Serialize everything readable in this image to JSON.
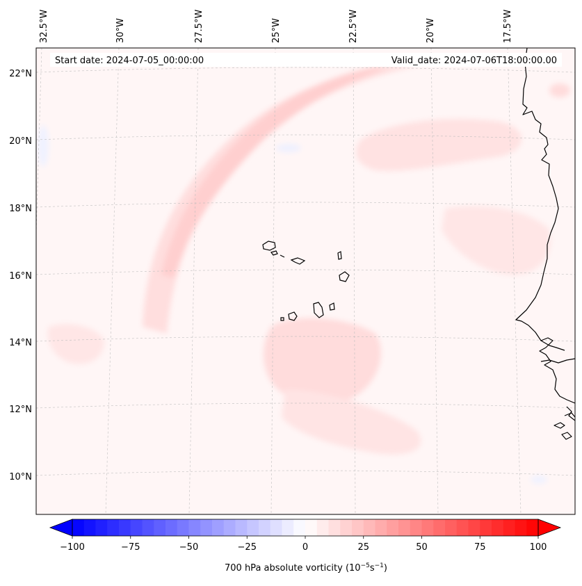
{
  "header": {
    "start_date": "Start date: 2024-07-05_00:00:00",
    "valid_date": "Valid_date: 2024-07-06T18:00:00.00"
  },
  "map": {
    "variable": "700 hPa absolute vorticity",
    "lon_labels": [
      "32.5°W",
      "30°W",
      "27.5°W",
      "25°W",
      "22.5°W",
      "20°W",
      "17.5°W"
    ],
    "lat_labels": [
      "22°N",
      "20°N",
      "18°N",
      "16°N",
      "14°N",
      "12°N",
      "10°N"
    ],
    "gridlines": true,
    "coastline_color": "#000000",
    "features": [
      "cape-verde-islands",
      "west-africa-coast"
    ]
  },
  "colorbar": {
    "label_prefix": "700 hPa absolute vorticity (10",
    "label_exp1": "−5",
    "label_mid": "s",
    "label_exp2": "−1",
    "label_suffix": ")",
    "tick_labels": [
      "−100",
      "−75",
      "−50",
      "−25",
      "0",
      "25",
      "50",
      "75",
      "100"
    ],
    "vmin": -100,
    "vmax": 100,
    "levels": 41,
    "colormap": "bwr",
    "low_color": "#0000ff",
    "mid_color": "#ffffff",
    "high_color": "#ff0000",
    "extend": "both"
  }
}
